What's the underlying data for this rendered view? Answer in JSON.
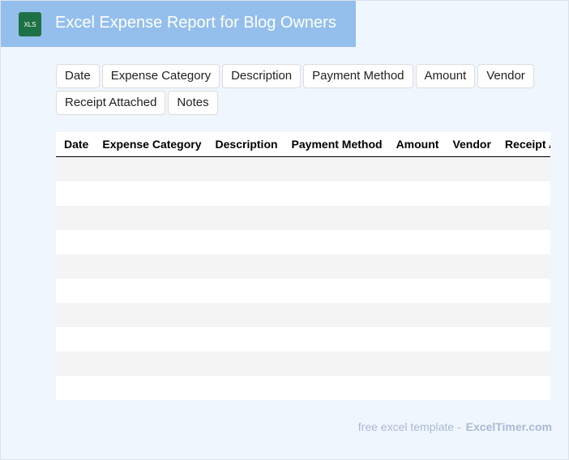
{
  "header": {
    "title": "Excel Expense Report for Blog Owners",
    "icon": "XLS"
  },
  "fields": [
    "Date",
    "Expense Category",
    "Description",
    "Payment Method",
    "Amount",
    "Vendor",
    "Receipt Attached",
    "Notes"
  ],
  "table": {
    "headers": [
      "Date",
      "Expense Category",
      "Description",
      "Payment Method",
      "Amount",
      "Vendor",
      "Receipt Attached"
    ]
  },
  "footer": {
    "text": "free excel template -",
    "link": "ExcelTimer.com"
  }
}
